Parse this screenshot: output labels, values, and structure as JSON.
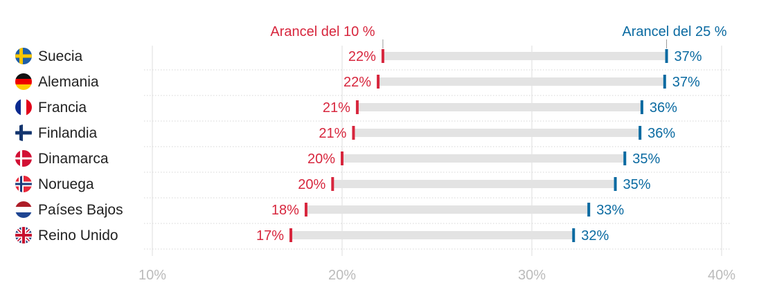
{
  "chart_data": {
    "type": "dumbbell",
    "xlim": [
      10,
      40
    ],
    "ticks": [
      10,
      20,
      30,
      40
    ],
    "tick_labels": [
      "10%",
      "20%",
      "30%",
      "40%"
    ],
    "grid": true,
    "legend": {
      "low_label": "Arancel del 10 %",
      "high_label": "Arancel del 25 %",
      "placement": "top"
    },
    "colors": {
      "low": "#d7263d",
      "high": "#0a6aa1",
      "bar": "#e3e3e3",
      "grid": "#dddddd",
      "text": "#222222",
      "axis_text": "#bbbbbb"
    },
    "rows": [
      {
        "country": "Suecia",
        "flag": "sweden-flag",
        "low": 22.15,
        "high": 37.1,
        "low_label": "22%",
        "high_label": "37%"
      },
      {
        "country": "Alemania",
        "flag": "germany-flag",
        "low": 21.9,
        "high": 37.0,
        "low_label": "22%",
        "high_label": "37%"
      },
      {
        "country": "Francia",
        "flag": "france-flag",
        "low": 20.8,
        "high": 35.8,
        "low_label": "21%",
        "high_label": "36%"
      },
      {
        "country": "Finlandia",
        "flag": "finland-flag",
        "low": 20.6,
        "high": 35.7,
        "low_label": "21%",
        "high_label": "36%"
      },
      {
        "country": "Dinamarca",
        "flag": "denmark-flag",
        "low": 20.0,
        "high": 34.9,
        "low_label": "20%",
        "high_label": "35%"
      },
      {
        "country": "Noruega",
        "flag": "norway-flag",
        "low": 19.5,
        "high": 34.4,
        "low_label": "20%",
        "high_label": "35%"
      },
      {
        "country": "Países Bajos",
        "flag": "netherlands-flag",
        "low": 18.1,
        "high": 33.0,
        "low_label": "18%",
        "high_label": "33%"
      },
      {
        "country": "Reino Unido",
        "flag": "uk-flag",
        "low": 17.3,
        "high": 32.2,
        "low_label": "17%",
        "high_label": "32%"
      }
    ]
  }
}
